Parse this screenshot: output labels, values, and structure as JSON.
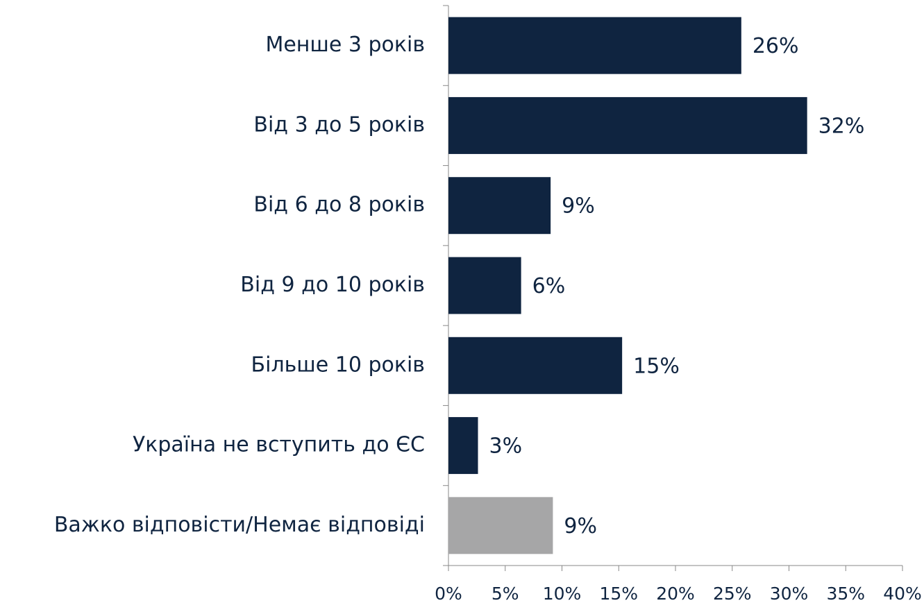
{
  "chart_data": {
    "type": "barh",
    "categories": [
      "Менше 3 років",
      "Від 3 до 5 років",
      "Від 6 до 8 років",
      "Від 9 до 10 років",
      "Більше 10 років",
      "Україна не вступить до ЄС",
      "Важко відповісти/Немає відповіді"
    ],
    "values": [
      25.8,
      31.6,
      9.0,
      6.4,
      15.3,
      2.6,
      9.2
    ],
    "value_labels": [
      "26%",
      "32%",
      "9%",
      "6%",
      "15%",
      "3%",
      "9%"
    ],
    "colors": [
      "#0f2440",
      "#0f2440",
      "#0f2440",
      "#0f2440",
      "#0f2440",
      "#0f2440",
      "#a6a6a7"
    ],
    "xlim": [
      0,
      40
    ],
    "xticks": [
      {
        "value": 0,
        "label": "0%"
      },
      {
        "value": 5,
        "label": "5%"
      },
      {
        "value": 10,
        "label": "10%"
      },
      {
        "value": 15,
        "label": "15%"
      },
      {
        "value": 20,
        "label": "20%"
      },
      {
        "value": 25,
        "label": "25%"
      },
      {
        "value": 30,
        "label": "30%"
      },
      {
        "value": 35,
        "label": "35%"
      },
      {
        "value": 40,
        "label": "40%"
      }
    ]
  }
}
